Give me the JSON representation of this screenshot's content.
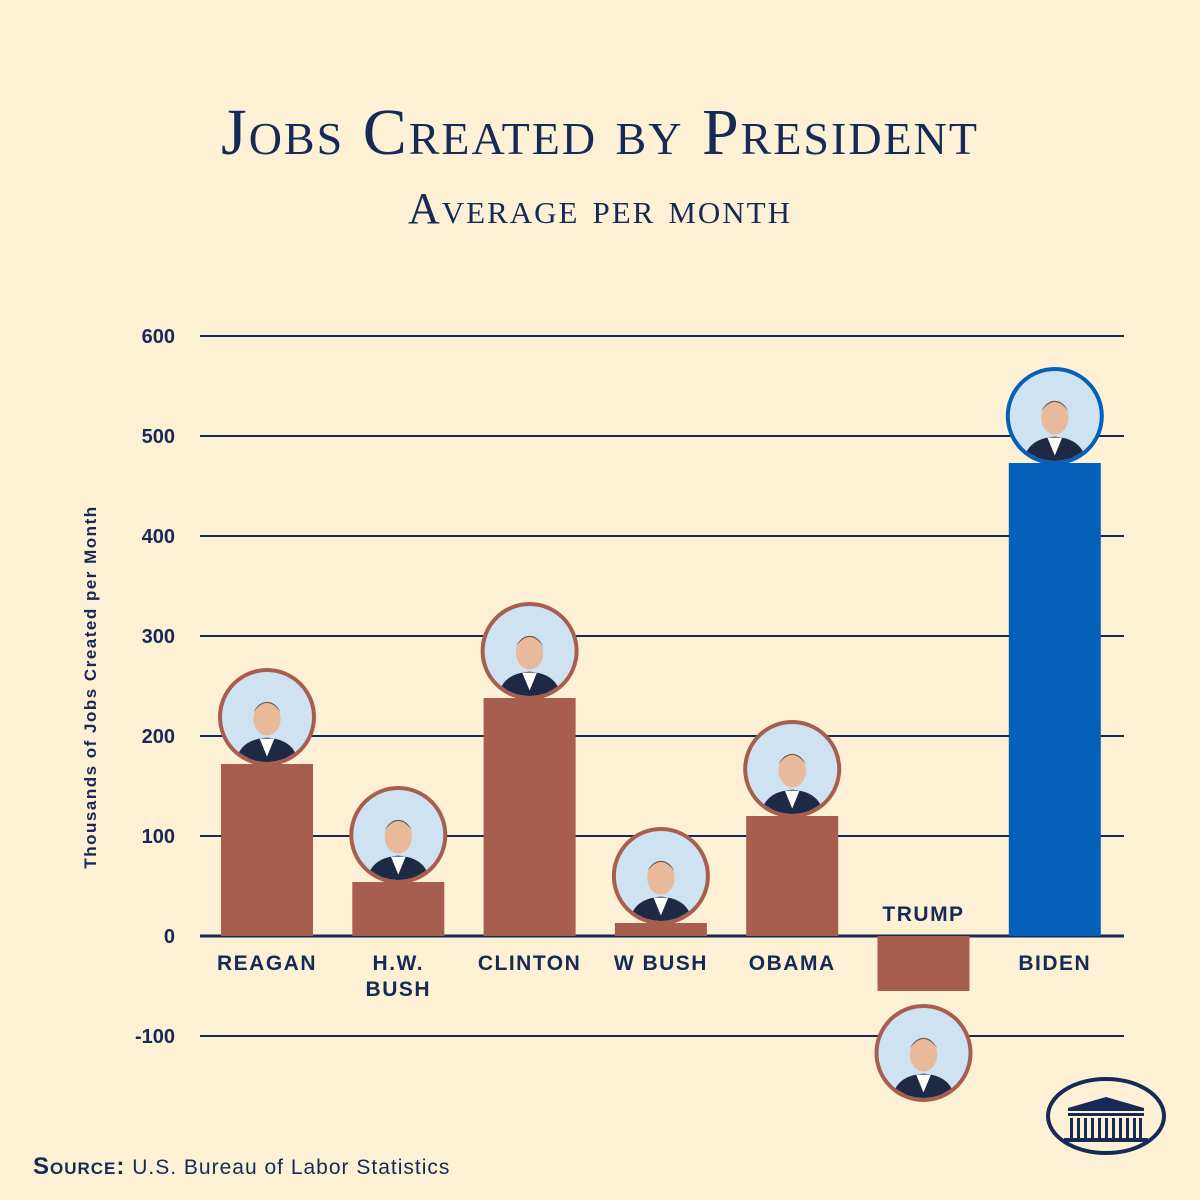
{
  "title": "Jobs Created by President",
  "subtitle": "Average per month",
  "source_label": "Source:",
  "source_text": "U.S. Bureau of Labor Statistics",
  "colors": {
    "background": "#fdf0d5",
    "navy": "#162a57",
    "bar": "#a75e4e",
    "highlight": "#0560b9",
    "avatar_bg": "#cfe2f1"
  },
  "chart_data": {
    "type": "bar",
    "title": "Jobs Created by President",
    "subtitle": "Average per month",
    "ylabel": "Thousands of Jobs Created per Month",
    "ylim": [
      -100,
      600
    ],
    "yticks": [
      -100,
      0,
      100,
      200,
      300,
      400,
      500,
      600
    ],
    "grid": true,
    "categories": [
      "Reagan",
      "H.W. Bush",
      "Clinton",
      "W Bush",
      "Obama",
      "Trump",
      "Biden"
    ],
    "category_lines": [
      [
        "Reagan"
      ],
      [
        "H.W.",
        "Bush"
      ],
      [
        "Clinton"
      ],
      [
        "W Bush"
      ],
      [
        "Obama"
      ],
      [
        "Trump"
      ],
      [
        "Biden"
      ]
    ],
    "values": [
      172,
      54,
      238,
      13,
      120,
      -55,
      473
    ],
    "highlight": "Biden"
  }
}
